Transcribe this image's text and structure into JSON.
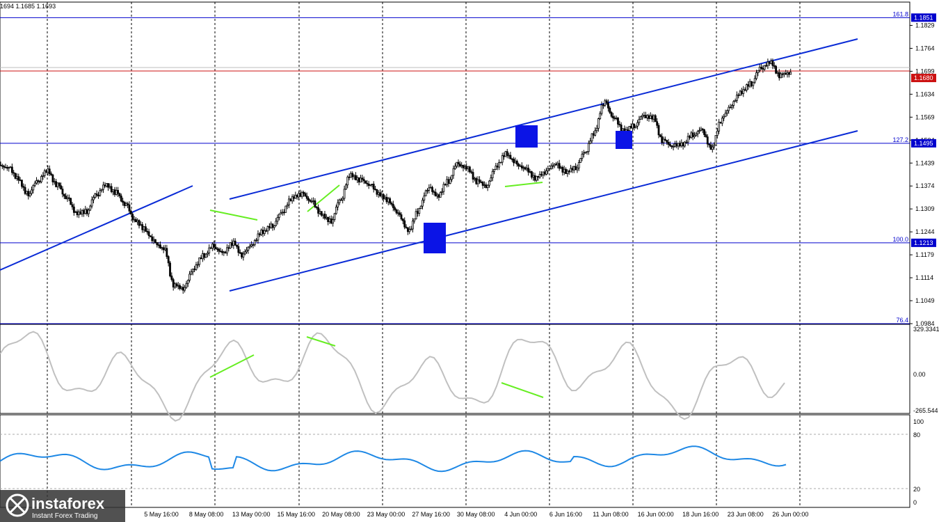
{
  "header": {
    "ohlc_text": "1694 1.1685 1.1693"
  },
  "colors": {
    "candle": "#000000",
    "fib": "#0000cd",
    "channel": "#0a2bd6",
    "resist": "#cc1111",
    "divergence": "#66ee22",
    "cci": "#c0c0c0",
    "rsi": "#1e88e5",
    "marker": "#0b14e6"
  },
  "price_axis": {
    "ticks": [
      "1.1829",
      "1.1764",
      "1.1699",
      "1.1634",
      "1.1569",
      "1.1504",
      "1.1439",
      "1.1374",
      "1.1309",
      "1.1244",
      "1.1179",
      "1.1114",
      "1.1049",
      "1.0984"
    ],
    "range": [
      1.0984,
      1.1895
    ],
    "labels": [
      {
        "value": "1.1851",
        "type": "fib"
      },
      {
        "value": "1.1680",
        "type": "resist"
      },
      {
        "value": "1.1495",
        "type": "fib"
      },
      {
        "value": "1.1213",
        "type": "fib"
      }
    ]
  },
  "fib_levels": [
    {
      "name": "161.8",
      "price": 1.1851
    },
    {
      "name": "127.2",
      "price": 1.1495
    },
    {
      "name": "100.0",
      "price": 1.1213
    },
    {
      "name": "76.4",
      "price": 1.0984
    }
  ],
  "cci": {
    "max": "329.3341",
    "zero": "0.00",
    "min": "-265.544"
  },
  "rsi": {
    "ticks": [
      "100",
      "80",
      "20",
      "0"
    ],
    "grid": [
      80,
      20
    ]
  },
  "time_axis": [
    "5 May 16:00",
    "8 May 08:00",
    "13 May 00:00",
    "15 May 16:00",
    "20 May 08:00",
    "23 May 00:00",
    "27 May 16:00",
    "30 May 08:00",
    "4 Jun 00:00",
    "6 Jun 16:00",
    "11 Jun 08:00",
    "16 Jun 00:00",
    "18 Jun 16:00",
    "23 Jun 08:00",
    "26 Jun 00:00"
  ],
  "logo": {
    "name": "instaforex",
    "tagline": "Instant Forex Trading"
  },
  "chart_data": {
    "type": "line",
    "title": "",
    "series": [
      {
        "values": [
          1.1425,
          1.1395,
          1.1352,
          1.1389,
          1.1418,
          1.1376,
          1.1338,
          1.1296,
          1.1302,
          1.1351,
          1.1378,
          1.1355,
          1.132,
          1.1275,
          1.1252,
          1.1218,
          1.1195,
          1.109,
          1.1082,
          1.1139,
          1.1178,
          1.1206,
          1.1186,
          1.1212,
          1.1176,
          1.1208,
          1.1245,
          1.1262,
          1.13,
          1.1338,
          1.135,
          1.133,
          1.1296,
          1.1275,
          1.1336,
          1.1405,
          1.139,
          1.1376,
          1.135,
          1.1332,
          1.1295,
          1.1247,
          1.1304,
          1.1366,
          1.1345,
          1.1388,
          1.144,
          1.1425,
          1.1385,
          1.1372,
          1.143,
          1.1467,
          1.144,
          1.1423,
          1.1395,
          1.1412,
          1.1435,
          1.1415,
          1.1425,
          1.147,
          1.1525,
          1.161,
          1.1565,
          1.153,
          1.1545,
          1.1575,
          1.1568,
          1.15,
          1.1485,
          1.1492,
          1.152,
          1.1535,
          1.148,
          1.156,
          1.16,
          1.164,
          1.1665,
          1.171,
          1.1725,
          1.1685,
          1.1693
        ]
      }
    ]
  }
}
